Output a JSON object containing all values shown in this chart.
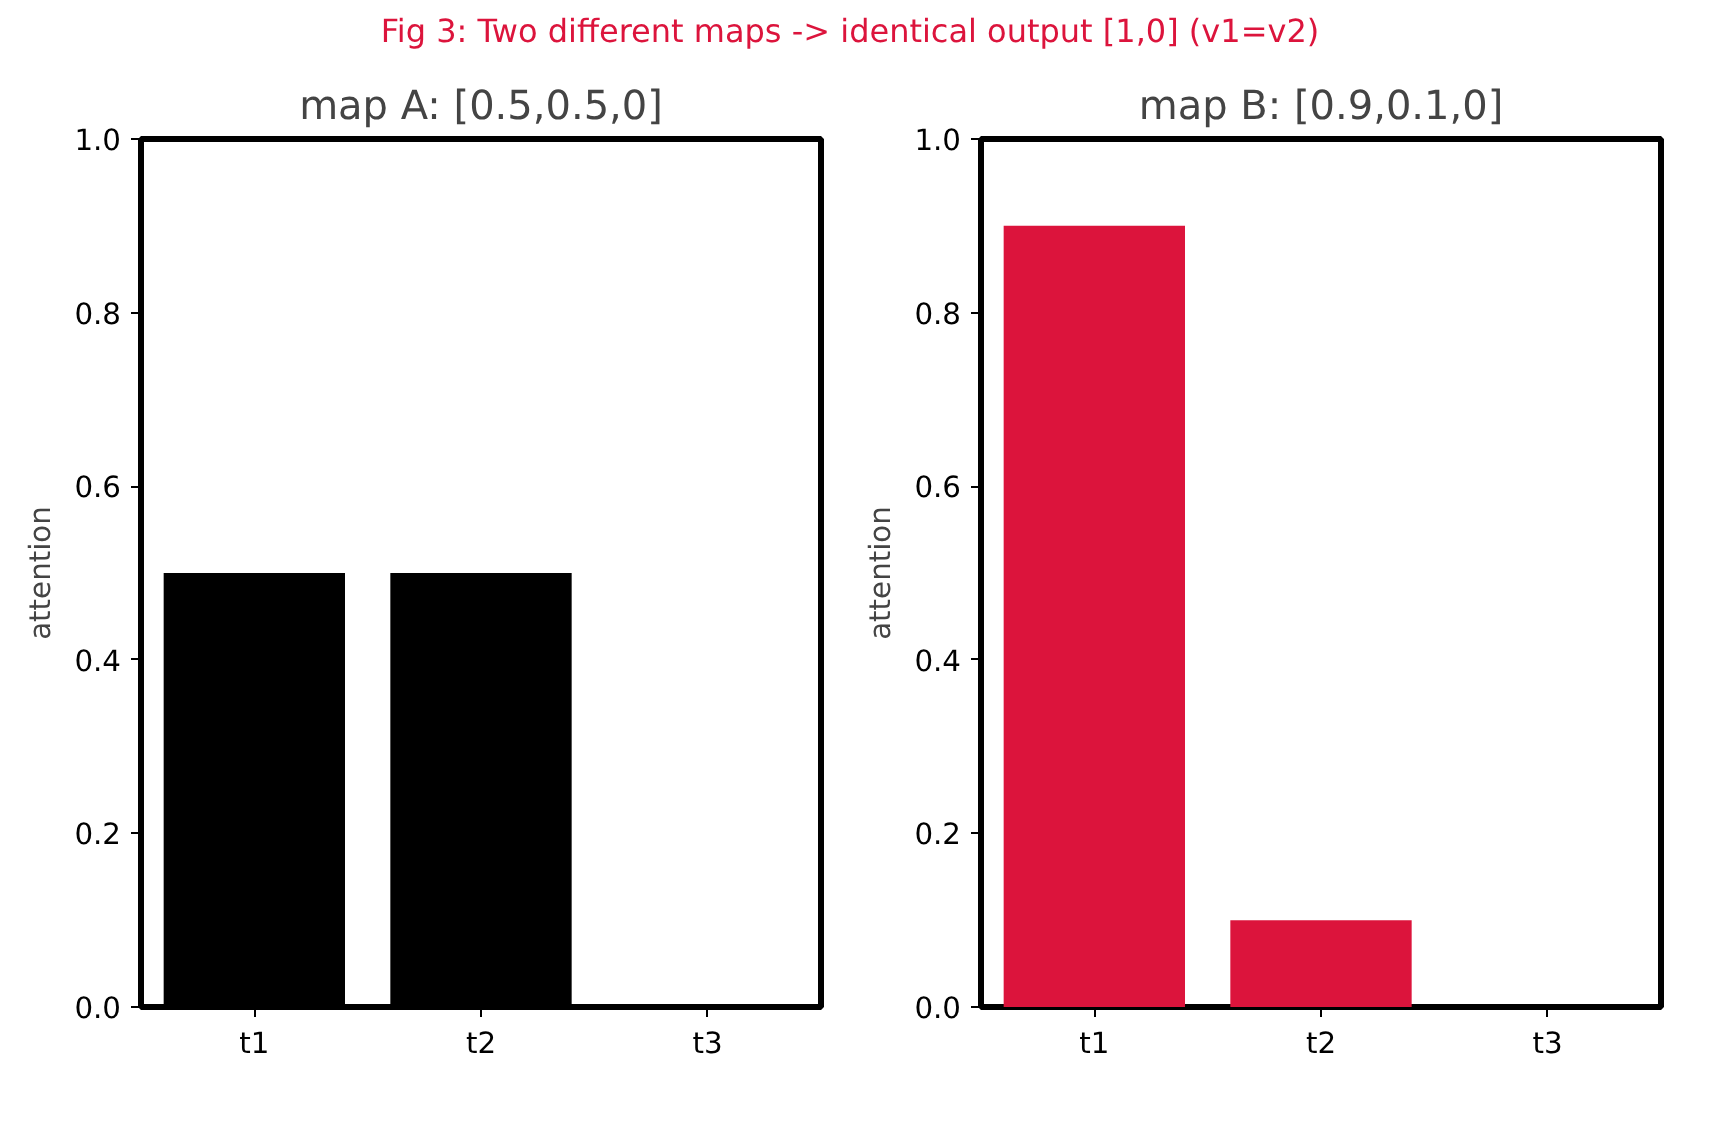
{
  "chart_data": [
    {
      "type": "bar",
      "title": "map A: [0.5,0.5,0]",
      "ylabel": "attention",
      "categories": [
        "t1",
        "t2",
        "t3"
      ],
      "values": [
        0.5,
        0.5,
        0
      ],
      "color": "#000000",
      "ylim": [
        0,
        1
      ],
      "yticks": [
        {
          "value": 0,
          "label": "0.0"
        },
        {
          "value": 0.2,
          "label": "0.2"
        },
        {
          "value": 0.4,
          "label": "0.4"
        },
        {
          "value": 0.6,
          "label": "0.6"
        },
        {
          "value": 0.8,
          "label": "0.8"
        },
        {
          "value": 1,
          "label": "1.0"
        }
      ],
      "grid": false,
      "legend": false,
      "annotations": [
        "Fig 3: Two different maps -> identical output [1,0]  (v1=v2)"
      ]
    },
    {
      "type": "bar",
      "title": "map B: [0.9,0.1,0]",
      "ylabel": "attention",
      "categories": [
        "t1",
        "t2",
        "t3"
      ],
      "values": [
        0.9,
        0.1,
        0
      ],
      "color": "#dc143c",
      "ylim": [
        0,
        1
      ],
      "yticks": [
        {
          "value": 0,
          "label": "0.0"
        },
        {
          "value": 0.2,
          "label": "0.2"
        },
        {
          "value": 0.4,
          "label": "0.4"
        },
        {
          "value": 0.6,
          "label": "0.6"
        },
        {
          "value": 0.8,
          "label": "0.8"
        },
        {
          "value": 1,
          "label": "1.0"
        }
      ],
      "grid": false,
      "legend": false
    }
  ]
}
